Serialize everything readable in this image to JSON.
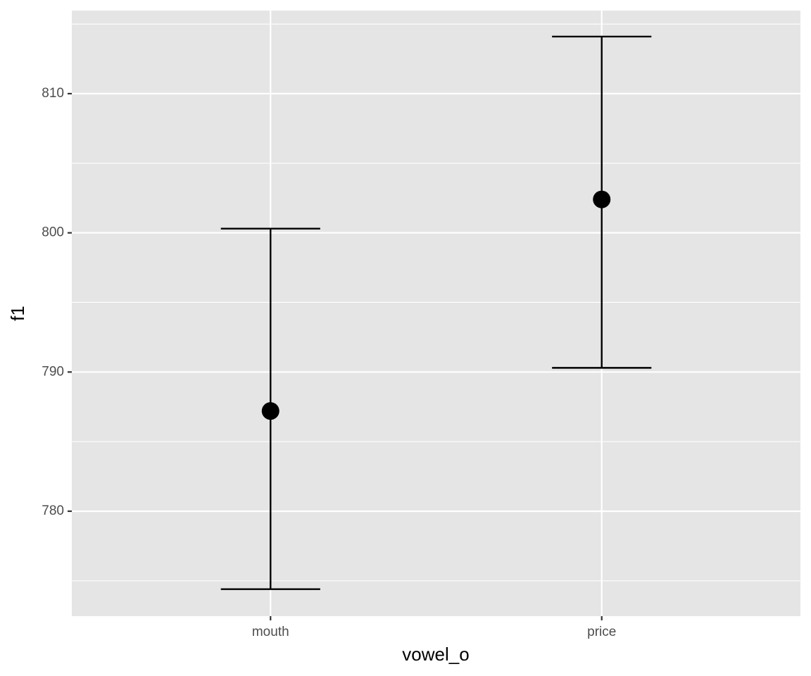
{
  "chart_data": {
    "type": "errorbar",
    "x_label": "vowel_o",
    "y_label": "f1",
    "categories": [
      "mouth",
      "price"
    ],
    "series": [
      {
        "color": "#000000",
        "values": [
          787.2,
          802.4
        ],
        "lower": [
          774.4,
          790.3
        ],
        "upper": [
          800.3,
          814.1
        ]
      }
    ],
    "ylim": [
      772.46,
      815.97
    ],
    "yticks": [
      780,
      790,
      800,
      810
    ],
    "minor_yticks": [
      775,
      785,
      795,
      805,
      815
    ],
    "grid": true,
    "panel_color": "#e5e5e5"
  }
}
